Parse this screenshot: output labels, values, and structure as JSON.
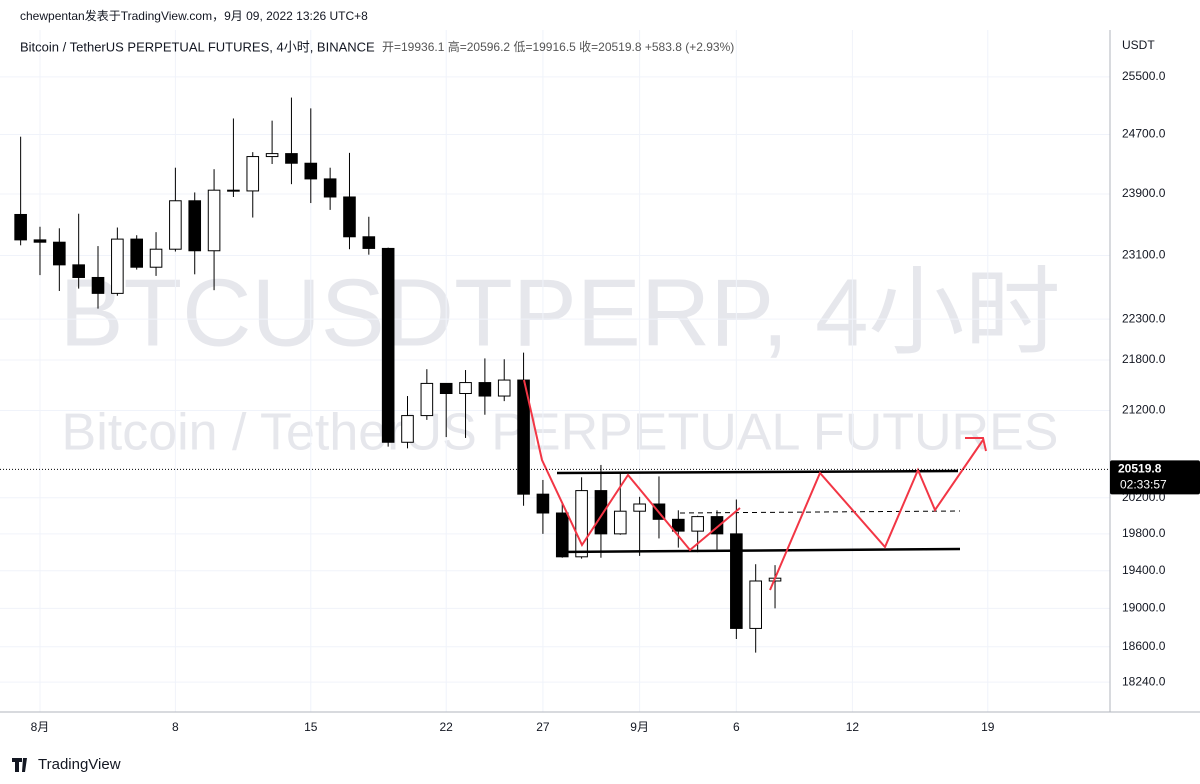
{
  "header": {
    "byline": "chewpentan发表于TradingView.com，9月 09, 2022 13:26 UTC+8",
    "symbol": "Bitcoin / TetherUS PERPETUAL FUTURES, 4小时, BINANCE",
    "ohlc": "开=19936.1 高=20596.2 低=19916.5 收=20519.8 +583.8 (+2.93%)"
  },
  "watermark": {
    "line1": "BTCUSDTPERP, 4小时",
    "line2": "Bitcoin / TetherUS PERPETUAL FUTURES"
  },
  "footer": {
    "brand": "TradingView"
  },
  "chart_data": {
    "type": "candlestick",
    "y_axis_label": "USDT",
    "log_scale": true,
    "grid": true,
    "up_color": "#ffffff",
    "down_color": "#000000",
    "x": [
      -1,
      0,
      1,
      2,
      3,
      4,
      5,
      6,
      7,
      8,
      9,
      10,
      11,
      12,
      13,
      14,
      15,
      16,
      17,
      18,
      19,
      20,
      21,
      22,
      23,
      24,
      25,
      26,
      27,
      28,
      29,
      30,
      31,
      32,
      33,
      34,
      35,
      36,
      37,
      38
    ],
    "open": [
      23630,
      23300,
      23270,
      22980,
      22820,
      22620,
      23310,
      22950,
      23180,
      23810,
      23160,
      23950,
      23940,
      24400,
      24440,
      24310,
      24100,
      23860,
      23340,
      23190,
      20830,
      21140,
      21520,
      21400,
      21530,
      21370,
      21560,
      20240,
      20030,
      19550,
      20280,
      19800,
      20050,
      20130,
      19960,
      19830,
      19990,
      19800,
      18790,
      19290
    ],
    "high": [
      24670,
      23470,
      23450,
      23640,
      23220,
      23460,
      23360,
      23400,
      24250,
      23920,
      24230,
      24920,
      24460,
      24890,
      25210,
      25060,
      24250,
      24450,
      23600,
      23200,
      21370,
      21690,
      21520,
      21680,
      21820,
      21810,
      21890,
      20400,
      20150,
      20430,
      20570,
      20490,
      20210,
      20440,
      20060,
      20000,
      20060,
      20180,
      19470,
      19460
    ],
    "low": [
      23230,
      22850,
      22650,
      22680,
      22430,
      22590,
      22920,
      22840,
      23150,
      22860,
      22660,
      23860,
      23590,
      24300,
      24030,
      23780,
      23690,
      23180,
      23110,
      20780,
      20760,
      21090,
      20890,
      20880,
      21150,
      21310,
      20110,
      19800,
      19540,
      19530,
      19540,
      19790,
      19560,
      19750,
      19650,
      19600,
      19630,
      18680,
      18540,
      19000
    ],
    "close": [
      23300,
      23270,
      22980,
      22820,
      22620,
      23310,
      22950,
      23180,
      23810,
      23160,
      23950,
      23940,
      24400,
      24440,
      24310,
      24100,
      23860,
      23340,
      23190,
      20830,
      21140,
      21520,
      21400,
      21530,
      21370,
      21560,
      20240,
      20030,
      19550,
      20280,
      19800,
      20050,
      20130,
      19960,
      19830,
      19990,
      19800,
      18790,
      19290,
      19320
    ],
    "last_price": {
      "value": 20519.8,
      "label": "20519.8",
      "countdown": "02:33:57"
    },
    "xlim": [
      -1.55,
      54.8
    ],
    "xticks": [
      {
        "value": 0,
        "label": "8月"
      },
      {
        "value": 7,
        "label": "8"
      },
      {
        "value": 14,
        "label": "15"
      },
      {
        "value": 21,
        "label": "22"
      },
      {
        "value": 26,
        "label": "27"
      },
      {
        "value": 31,
        "label": "9月"
      },
      {
        "value": 36,
        "label": "6"
      },
      {
        "value": 42,
        "label": "12"
      },
      {
        "value": 49,
        "label": "19"
      }
    ],
    "ylim": [
      18010,
      25740
    ],
    "yticks": [
      {
        "value": 25500,
        "label": "25500.0"
      },
      {
        "value": 24700,
        "label": "24700.0"
      },
      {
        "value": 23900,
        "label": "23900.0"
      },
      {
        "value": 23100,
        "label": "23100.0"
      },
      {
        "value": 22300,
        "label": "22300.0"
      },
      {
        "value": 21800,
        "label": "21800.0"
      },
      {
        "value": 21200,
        "label": "21200.0"
      },
      {
        "value": 20200,
        "label": "20200.0"
      },
      {
        "value": 19800,
        "label": "19800.0"
      },
      {
        "value": 19400,
        "label": "19400.0"
      },
      {
        "value": 19000,
        "label": "19000.0"
      },
      {
        "value": 18600,
        "label": "18600.0"
      },
      {
        "value": 18240,
        "label": "18240.0"
      }
    ]
  }
}
